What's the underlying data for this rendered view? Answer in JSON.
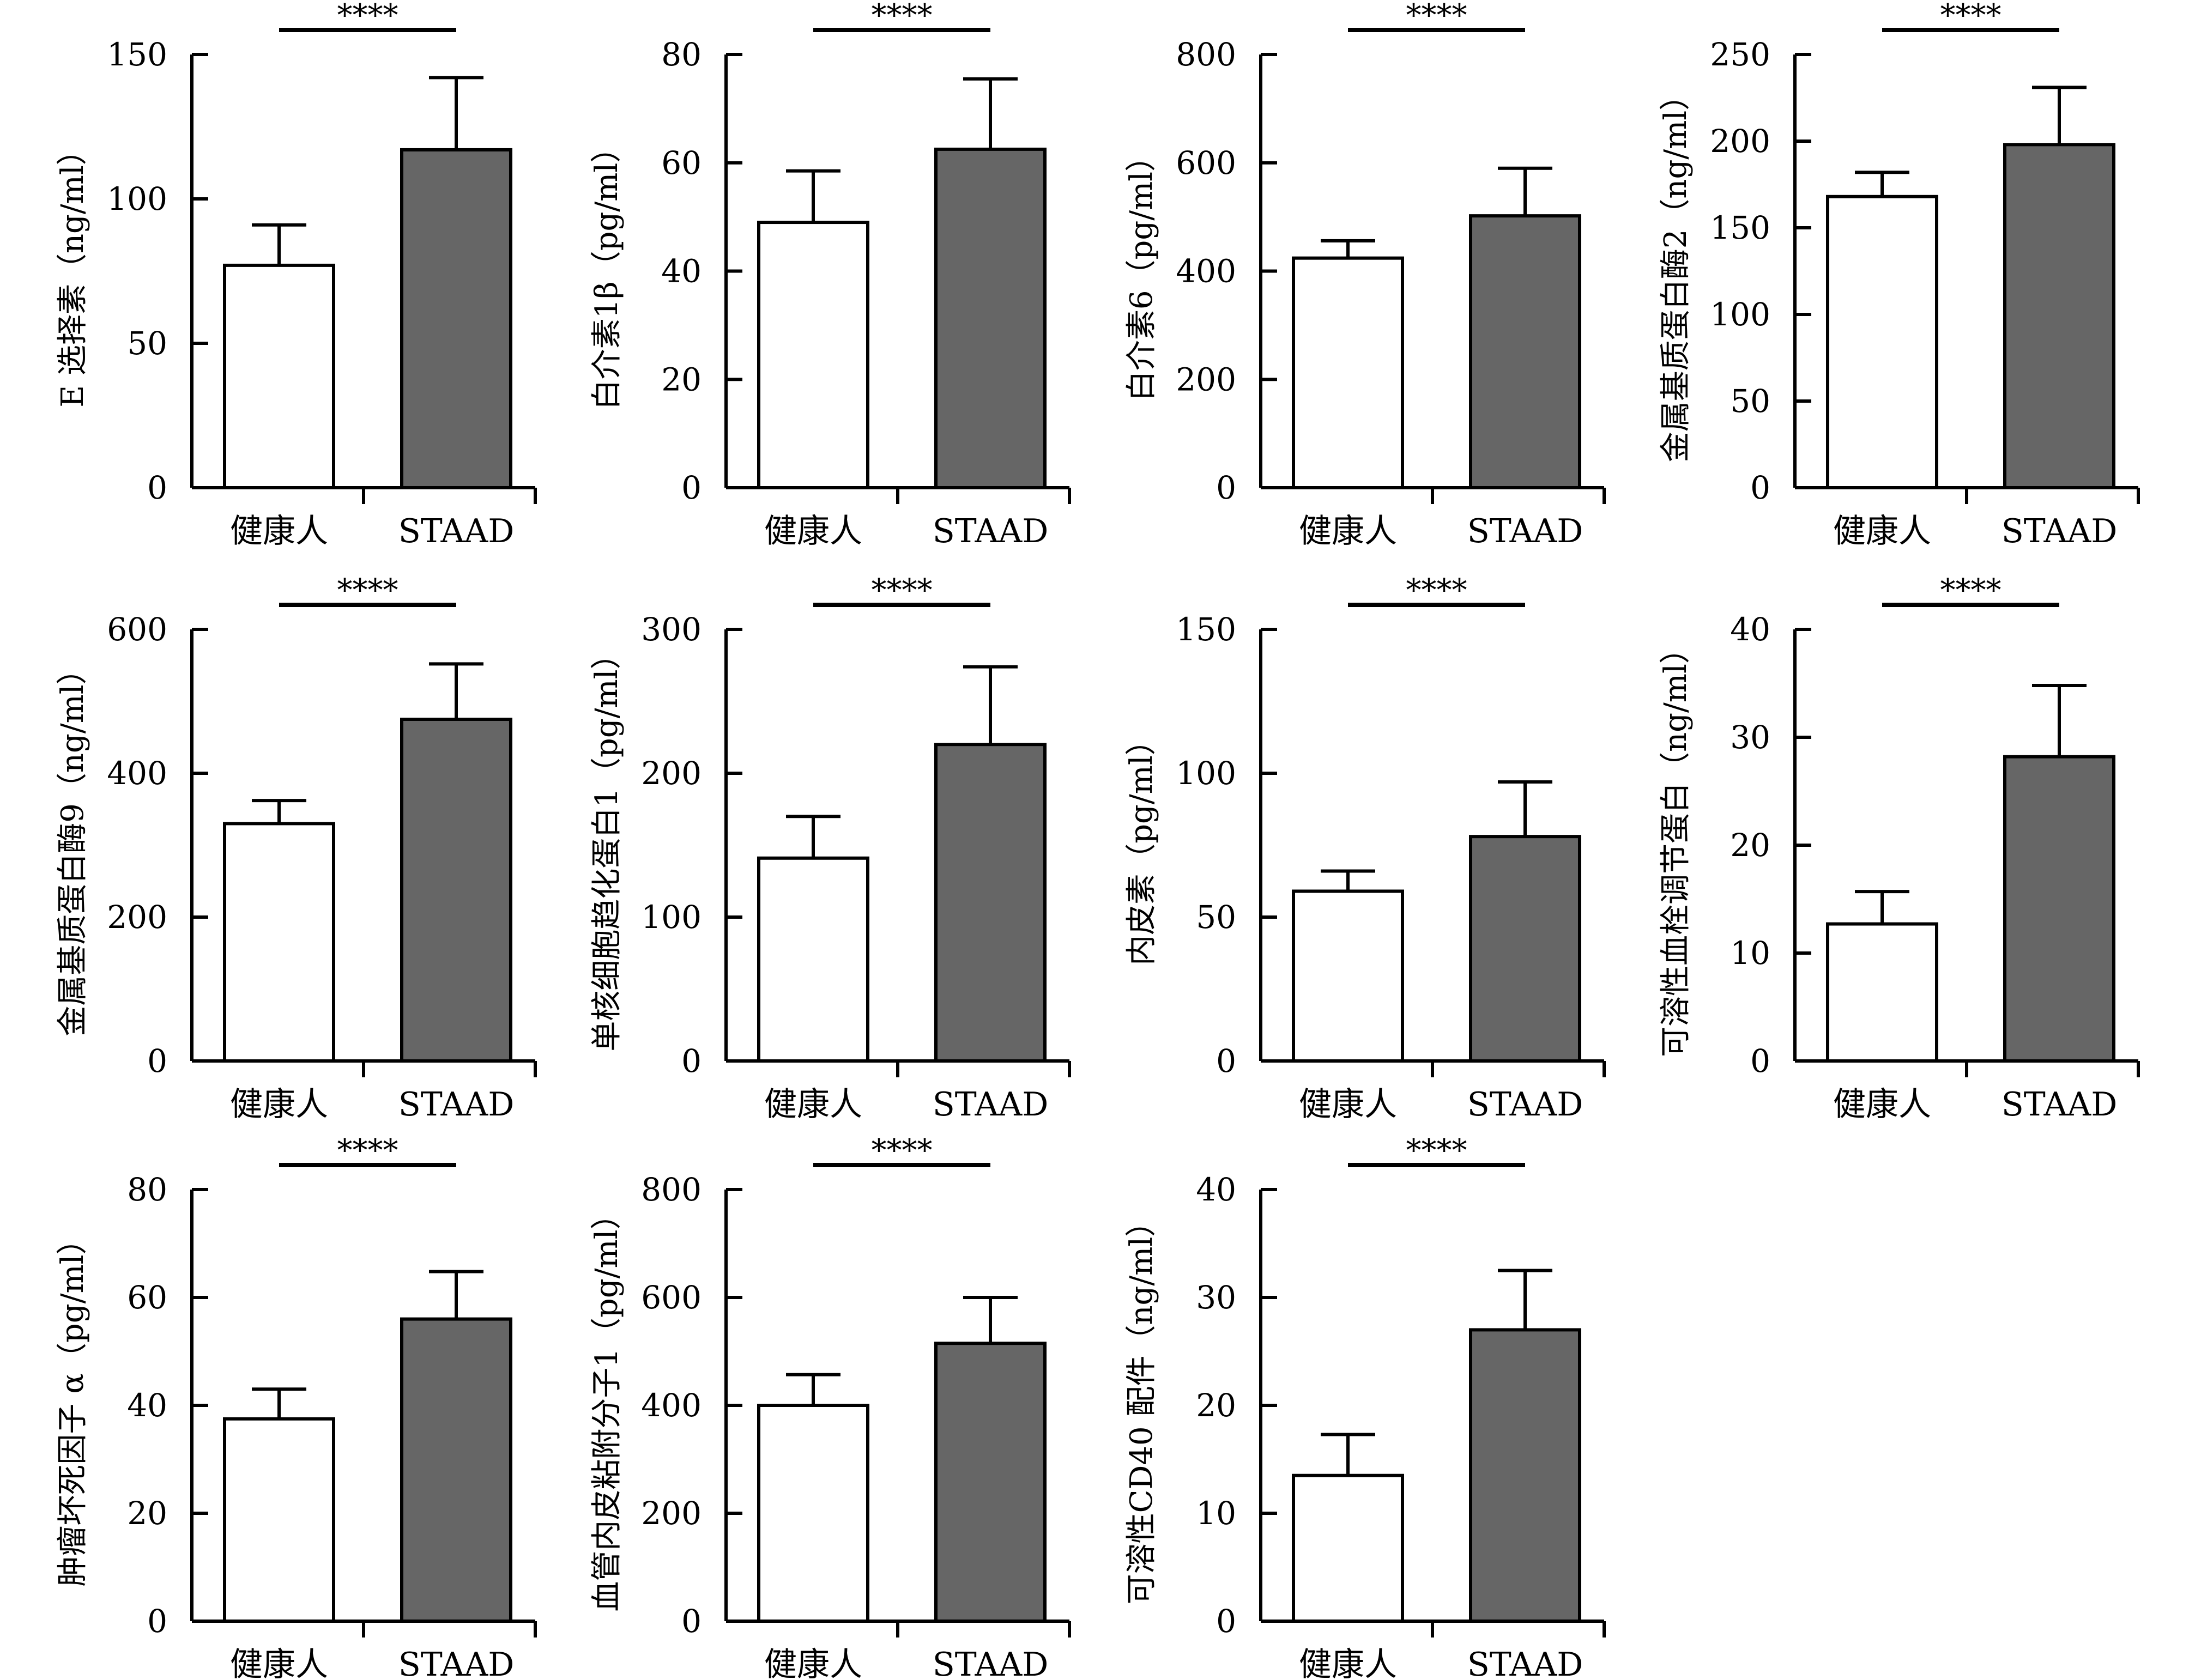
{
  "chart_data": [
    {
      "type": "bar",
      "ylabel": "E 选择素（ng/ml）",
      "ylim": [
        0,
        150
      ],
      "yticks": [
        0,
        50,
        100,
        150
      ],
      "categories": [
        "健康人",
        "STAAD"
      ],
      "values": [
        77,
        117
      ],
      "errors": [
        14,
        25
      ],
      "significance": "****"
    },
    {
      "type": "bar",
      "ylabel": "白介素1β（pg/ml）",
      "ylim": [
        0,
        80
      ],
      "yticks": [
        0,
        20,
        40,
        60,
        80
      ],
      "categories": [
        "健康人",
        "STAAD"
      ],
      "values": [
        49,
        62.5
      ],
      "errors": [
        9.5,
        13
      ],
      "significance": "****"
    },
    {
      "type": "bar",
      "ylabel": "白介素6（pg/ml）",
      "ylim": [
        0,
        800
      ],
      "yticks": [
        0,
        200,
        400,
        600,
        800
      ],
      "categories": [
        "健康人",
        "STAAD"
      ],
      "values": [
        424,
        502
      ],
      "errors": [
        32,
        88
      ],
      "significance": "****"
    },
    {
      "type": "bar",
      "ylabel": "金属基质蛋白酶2（ng/ml）",
      "ylim": [
        0,
        250
      ],
      "yticks": [
        0,
        50,
        100,
        150,
        200,
        250
      ],
      "categories": [
        "健康人",
        "STAAD"
      ],
      "values": [
        168,
        198
      ],
      "errors": [
        14,
        33
      ],
      "significance": "****"
    },
    {
      "type": "bar",
      "ylabel": "金属基质蛋白酶9（ng/ml）",
      "ylim": [
        0,
        600
      ],
      "yticks": [
        0,
        200,
        400,
        600
      ],
      "categories": [
        "健康人",
        "STAAD"
      ],
      "values": [
        330,
        475
      ],
      "errors": [
        32,
        77
      ],
      "significance": "****"
    },
    {
      "type": "bar",
      "ylabel": "单核细胞趋化蛋白1（pg/ml）",
      "ylim": [
        0,
        300
      ],
      "yticks": [
        0,
        100,
        200,
        300
      ],
      "categories": [
        "健康人",
        "STAAD"
      ],
      "values": [
        141,
        220
      ],
      "errors": [
        29,
        54
      ],
      "significance": "****"
    },
    {
      "type": "bar",
      "ylabel": "内皮素（pg/ml）",
      "ylim": [
        0,
        150
      ],
      "yticks": [
        0,
        50,
        100,
        150
      ],
      "categories": [
        "健康人",
        "STAAD"
      ],
      "values": [
        59,
        78
      ],
      "errors": [
        7,
        19
      ],
      "significance": "****"
    },
    {
      "type": "bar",
      "ylabel": "可溶性血栓调节蛋白（ng/ml）",
      "ylim": [
        0,
        40
      ],
      "yticks": [
        0,
        10,
        20,
        30,
        40
      ],
      "categories": [
        "健康人",
        "STAAD"
      ],
      "values": [
        12.7,
        28.2
      ],
      "errors": [
        3,
        6.6
      ],
      "significance": "****"
    },
    {
      "type": "bar",
      "ylabel": "肿瘤坏死因子 α（pg/ml）",
      "ylim": [
        0,
        80
      ],
      "yticks": [
        0,
        20,
        40,
        60,
        80
      ],
      "categories": [
        "健康人",
        "STAAD"
      ],
      "values": [
        37.5,
        56
      ],
      "errors": [
        5.5,
        8.8
      ],
      "significance": "****"
    },
    {
      "type": "bar",
      "ylabel": "血管内皮粘附分子1（pg/ml）",
      "ylim": [
        0,
        800
      ],
      "yticks": [
        0,
        200,
        400,
        600,
        800
      ],
      "categories": [
        "健康人",
        "STAAD"
      ],
      "values": [
        400,
        515
      ],
      "errors": [
        57,
        85
      ],
      "significance": "****"
    },
    {
      "type": "bar",
      "ylabel": "可溶性CD40 配件（ng/ml）",
      "ylim": [
        0,
        40
      ],
      "yticks": [
        0,
        10,
        20,
        30,
        40
      ],
      "categories": [
        "健康人",
        "STAAD"
      ],
      "values": [
        13.5,
        27
      ],
      "errors": [
        3.8,
        5.5
      ],
      "significance": "****"
    }
  ],
  "colors": {
    "control_bar": "#ffffff",
    "staad_bar": "#666666",
    "line": "#000000"
  }
}
